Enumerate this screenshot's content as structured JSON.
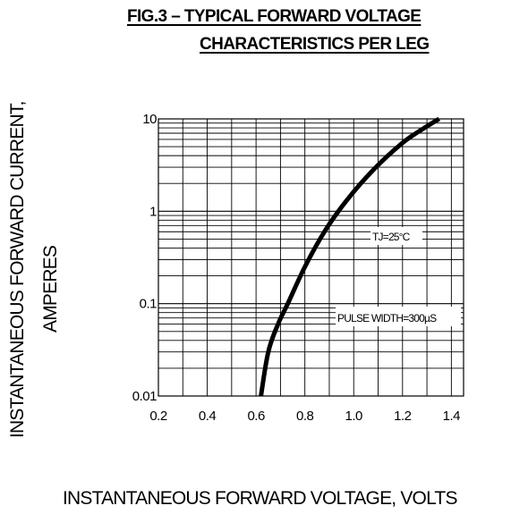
{
  "chart_data": {
    "type": "line",
    "scale": {
      "x": "linear",
      "y": "log"
    },
    "title_lines": [
      "FIG.3 – TYPICAL FORWARD VOLTAGE",
      "CHARACTERISTICS PER LEG"
    ],
    "ylabel_lines": [
      "INSTANTANEOUS FORWARD CURRENT,",
      "AMPERES"
    ],
    "xlabel": "INSTANTANEOUS FORWARD VOLTAGE,  VOLTS",
    "xlim": [
      0.2,
      1.45
    ],
    "ylim": [
      0.01,
      10
    ],
    "x_ticks": [
      "0.2",
      "0.4",
      "0.6",
      "0.8",
      "1.0",
      "1.2",
      "1.4"
    ],
    "y_ticks": [
      "10",
      "1",
      "0.1",
      "0.01"
    ],
    "grid": true,
    "annotations": [
      "TJ=25°C",
      "PULSE WIDTH=300µS"
    ],
    "series": [
      {
        "x": [
          0.62,
          0.65,
          0.69,
          0.73,
          0.8,
          0.88,
          0.97,
          1.08,
          1.2,
          1.29,
          1.35
        ],
        "y": [
          0.01,
          0.03,
          0.06,
          0.1,
          0.25,
          0.6,
          1.3,
          2.8,
          5.5,
          8.0,
          10
        ]
      }
    ]
  }
}
